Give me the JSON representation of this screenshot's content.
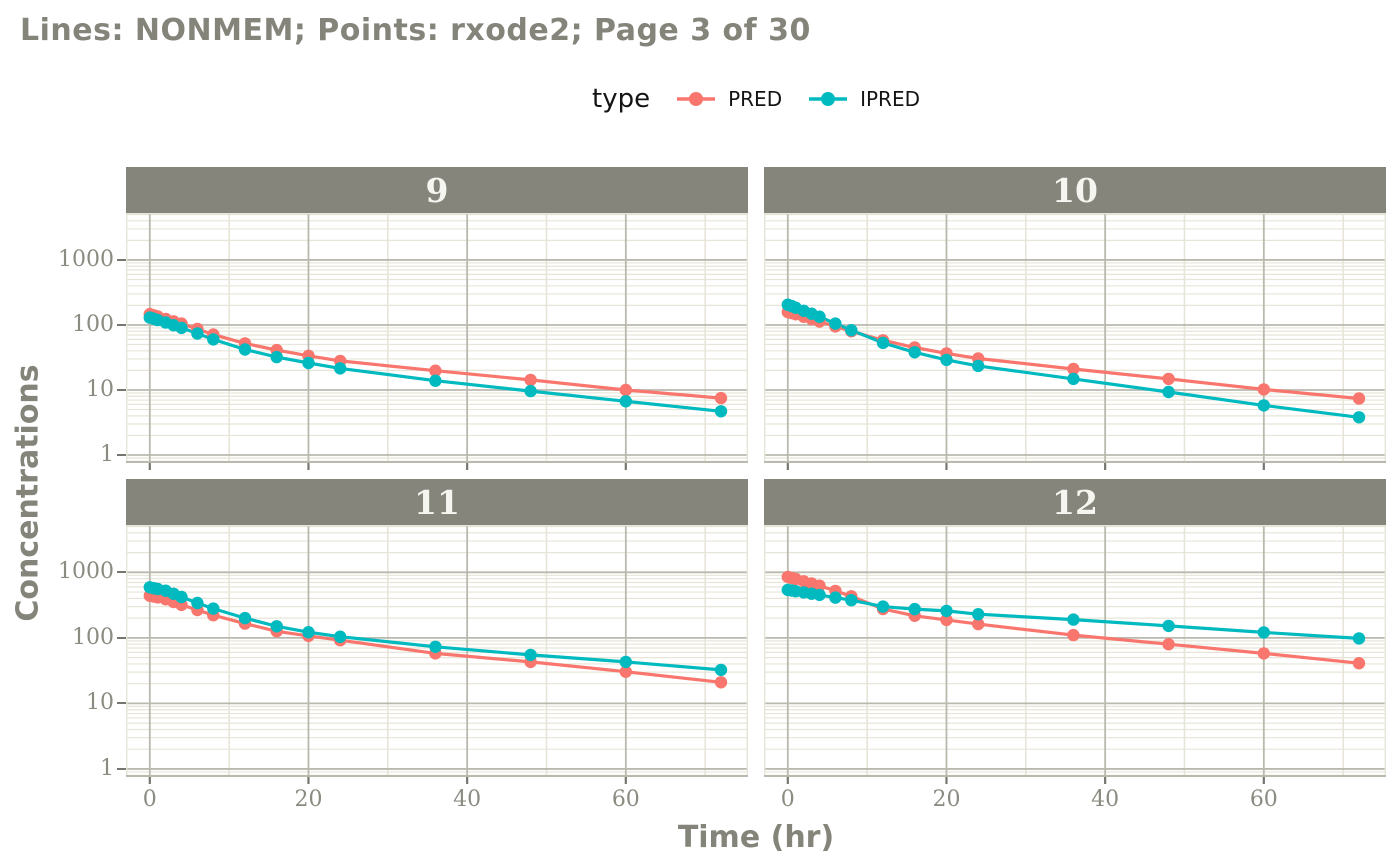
{
  "page": {
    "title": "Lines: NONMEM; Points: rxode2; Page 3 of 30"
  },
  "chart_data": {
    "type": "line",
    "title": "Lines: NONMEM; Points: rxode2; Page 3 of 30",
    "xlabel": "Time (hr)",
    "ylabel": "Concentrations",
    "legend": {
      "title": "type",
      "position": "top"
    },
    "series_meta": [
      {
        "name": "PRED",
        "color": "#F8766D"
      },
      {
        "name": "IPRED",
        "color": "#00BAC0"
      }
    ],
    "x_scale": {
      "ticks": [
        0,
        20,
        40,
        60
      ],
      "tick_labels": [
        "0",
        "20",
        "40",
        "60"
      ],
      "minor": [
        10,
        30,
        50,
        70
      ],
      "lim": [
        -3.0,
        75.4
      ]
    },
    "y_scale": {
      "type": "log10",
      "ticks": [
        1000,
        100,
        10,
        1
      ],
      "tick_labels": [
        "1000",
        "100",
        "10",
        "1"
      ],
      "lim_log10": [
        -0.123,
        3.722
      ]
    },
    "grid": {
      "major_color": "#b9b9ae",
      "minor_color": "#e7e5d8",
      "on": true
    },
    "strip": {
      "bg": "#85857c",
      "text_color": "#f6f6f0"
    },
    "times": [
      0,
      0.5,
      1,
      2,
      3,
      4,
      6,
      8,
      12,
      16,
      20,
      24,
      36,
      48,
      60,
      72
    ],
    "facets": [
      {
        "label": "9",
        "PRED": [
          147,
          141,
          135,
          124,
          114,
          105,
          87,
          71,
          52,
          41,
          33.5,
          28,
          19.8,
          14.3,
          10,
          7.5
        ],
        "IPRED": [
          130,
          125,
          119,
          109,
          99,
          90,
          74,
          60,
          42,
          32,
          26,
          21.5,
          13.9,
          9.6,
          6.7,
          4.7
        ]
      },
      {
        "label": "10",
        "PRED": [
          158,
          152,
          146,
          134,
          123,
          113,
          95,
          80,
          58,
          45,
          36.5,
          30.5,
          21,
          14.8,
          10.2,
          7.4
        ],
        "IPRED": [
          205,
          195,
          184,
          165,
          149,
          134,
          105,
          83,
          53,
          38,
          29,
          23.5,
          14.8,
          9.3,
          5.8,
          3.8
        ]
      },
      {
        "label": "11",
        "PRED": [
          440,
          428,
          415,
          388,
          352,
          318,
          266,
          222,
          165,
          126,
          107,
          92,
          58,
          43,
          30.5,
          21
        ],
        "IPRED": [
          590,
          573,
          556,
          524,
          470,
          420,
          340,
          280,
          200,
          150,
          122,
          104,
          73,
          55,
          43,
          32.5
        ]
      },
      {
        "label": "12",
        "PRED": [
          850,
          820,
          790,
          730,
          675,
          625,
          520,
          430,
          276,
          217,
          188,
          162,
          110,
          80,
          58,
          41
        ],
        "IPRED": [
          540,
          528,
          516,
          494,
          472,
          452,
          412,
          375,
          300,
          275,
          258,
          230,
          190,
          152,
          121,
          98
        ]
      }
    ]
  }
}
